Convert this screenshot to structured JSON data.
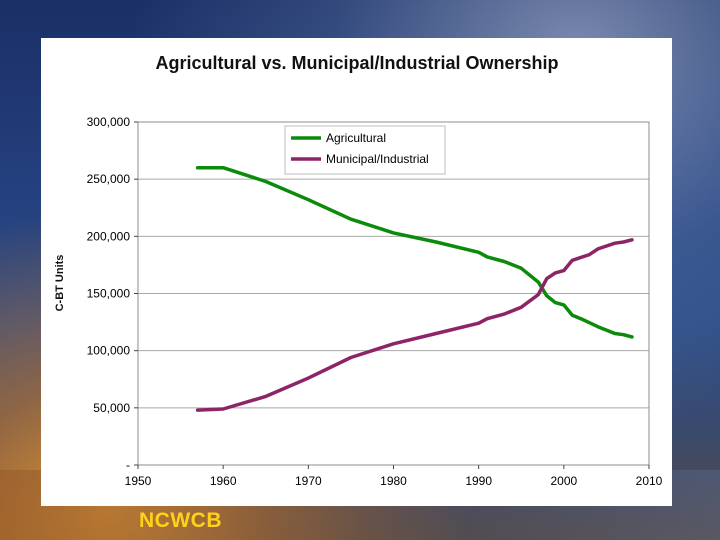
{
  "footer": {
    "brand": "NCWCB"
  },
  "chart_data": {
    "type": "line",
    "title": "Agricultural vs. Municipal/Industrial Ownership",
    "xlabel": "",
    "ylabel": "C-BT Units",
    "xlim": [
      1950,
      2010
    ],
    "ylim": [
      0,
      300000
    ],
    "x_ticks": [
      1950,
      1960,
      1970,
      1980,
      1990,
      2000,
      2010
    ],
    "y_ticks": [
      0,
      50000,
      100000,
      150000,
      200000,
      250000,
      300000
    ],
    "y_tick_labels": [
      "-",
      "50,000",
      "100,000",
      "150,000",
      "200,000",
      "250,000",
      "300,000"
    ],
    "grid": "horizontal",
    "legend_position": "top-center",
    "series": [
      {
        "name": "Agricultural",
        "color": "#0b8a0b",
        "points": [
          [
            1957,
            260000
          ],
          [
            1960,
            260000
          ],
          [
            1965,
            248000
          ],
          [
            1970,
            232000
          ],
          [
            1975,
            215000
          ],
          [
            1980,
            203000
          ],
          [
            1985,
            195000
          ],
          [
            1990,
            186000
          ],
          [
            1991,
            182000
          ],
          [
            1993,
            178000
          ],
          [
            1995,
            172000
          ],
          [
            1997,
            160000
          ],
          [
            1998,
            148000
          ],
          [
            1999,
            142000
          ],
          [
            2000,
            140000
          ],
          [
            2001,
            131000
          ],
          [
            2002,
            128000
          ],
          [
            2004,
            121000
          ],
          [
            2006,
            115000
          ],
          [
            2007,
            114000
          ],
          [
            2008,
            112000
          ]
        ]
      },
      {
        "name": "Municipal/Industrial",
        "color": "#8e2468",
        "points": [
          [
            1957,
            48000
          ],
          [
            1960,
            49000
          ],
          [
            1965,
            60000
          ],
          [
            1970,
            76000
          ],
          [
            1975,
            94000
          ],
          [
            1980,
            106000
          ],
          [
            1985,
            115000
          ],
          [
            1990,
            124000
          ],
          [
            1991,
            128000
          ],
          [
            1993,
            132000
          ],
          [
            1995,
            138000
          ],
          [
            1997,
            149000
          ],
          [
            1998,
            163000
          ],
          [
            1999,
            168000
          ],
          [
            2000,
            170000
          ],
          [
            2001,
            179000
          ],
          [
            2003,
            184000
          ],
          [
            2004,
            189000
          ],
          [
            2006,
            194000
          ],
          [
            2007,
            195000
          ],
          [
            2008,
            197000
          ]
        ]
      }
    ]
  }
}
